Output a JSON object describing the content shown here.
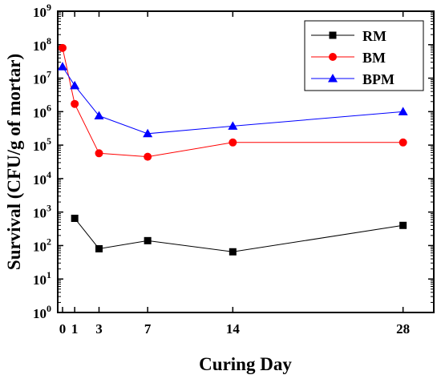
{
  "chart_data": {
    "type": "line",
    "title": "",
    "xlabel": "Curing Day",
    "ylabel": "Survival (CFU/g of mortar)",
    "y_scale": "log",
    "xlim": [
      0,
      30
    ],
    "ylim": [
      1,
      1000000000
    ],
    "x_ticks": [
      0,
      1,
      3,
      7,
      14,
      28
    ],
    "x_tick_labels": [
      "0",
      "1",
      "3",
      "7",
      "14",
      "28"
    ],
    "y_ticks": [
      1,
      10,
      100,
      1000,
      10000,
      100000,
      1000000,
      10000000,
      100000000,
      1000000000
    ],
    "y_tick_mantissa": "10",
    "y_tick_exponents": [
      "0",
      "1",
      "2",
      "3",
      "4",
      "5",
      "6",
      "7",
      "8",
      "9"
    ],
    "grid": false,
    "legend_position": "top-right",
    "series": [
      {
        "name": "RM",
        "color": "#000000",
        "marker": "square",
        "x": [
          1,
          3,
          7,
          14,
          28
        ],
        "y": [
          650,
          80,
          140,
          65,
          400
        ]
      },
      {
        "name": "BM",
        "color": "#ff0000",
        "marker": "circle",
        "x": [
          0,
          1,
          3,
          7,
          14,
          28
        ],
        "y": [
          80000000,
          1700000,
          57000,
          45000,
          120000,
          120000
        ]
      },
      {
        "name": "BPM",
        "color": "#0000ff",
        "marker": "triangle",
        "x": [
          0,
          1,
          3,
          7,
          14,
          28
        ],
        "y": [
          22000000,
          6000000,
          750000,
          220000,
          370000,
          1000000
        ]
      }
    ]
  }
}
